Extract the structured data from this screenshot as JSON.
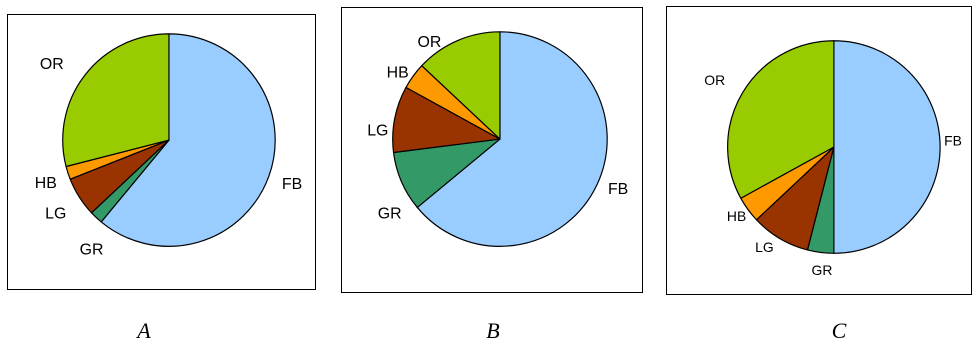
{
  "chart_data": [
    {
      "type": "pie",
      "caption": "A",
      "slices": [
        {
          "label": "FB",
          "value": 0.61,
          "color": "#99CCFF"
        },
        {
          "label": "GR",
          "value": 0.02,
          "color": "#339966"
        },
        {
          "label": "LG",
          "value": 0.06,
          "color": "#993300"
        },
        {
          "label": "HB",
          "value": 0.02,
          "color": "#FF9900"
        },
        {
          "label": "OR",
          "value": 0.29,
          "color": "#99CC00"
        }
      ]
    },
    {
      "type": "pie",
      "caption": "B",
      "slices": [
        {
          "label": "FB",
          "value": 0.64,
          "color": "#99CCFF"
        },
        {
          "label": "GR",
          "value": 0.09,
          "color": "#339966"
        },
        {
          "label": "LG",
          "value": 0.1,
          "color": "#993300"
        },
        {
          "label": "HB",
          "value": 0.04,
          "color": "#FF9900"
        },
        {
          "label": "OR",
          "value": 0.13,
          "color": "#99CC00"
        }
      ]
    },
    {
      "type": "pie",
      "caption": "C",
      "slices": [
        {
          "label": "FB",
          "value": 0.5,
          "color": "#99CCFF"
        },
        {
          "label": "GR",
          "value": 0.04,
          "color": "#339966"
        },
        {
          "label": "LG",
          "value": 0.09,
          "color": "#993300"
        },
        {
          "label": "HB",
          "value": 0.04,
          "color": "#FF9900"
        },
        {
          "label": "OR",
          "value": 0.33,
          "color": "#99CC00"
        }
      ]
    }
  ]
}
